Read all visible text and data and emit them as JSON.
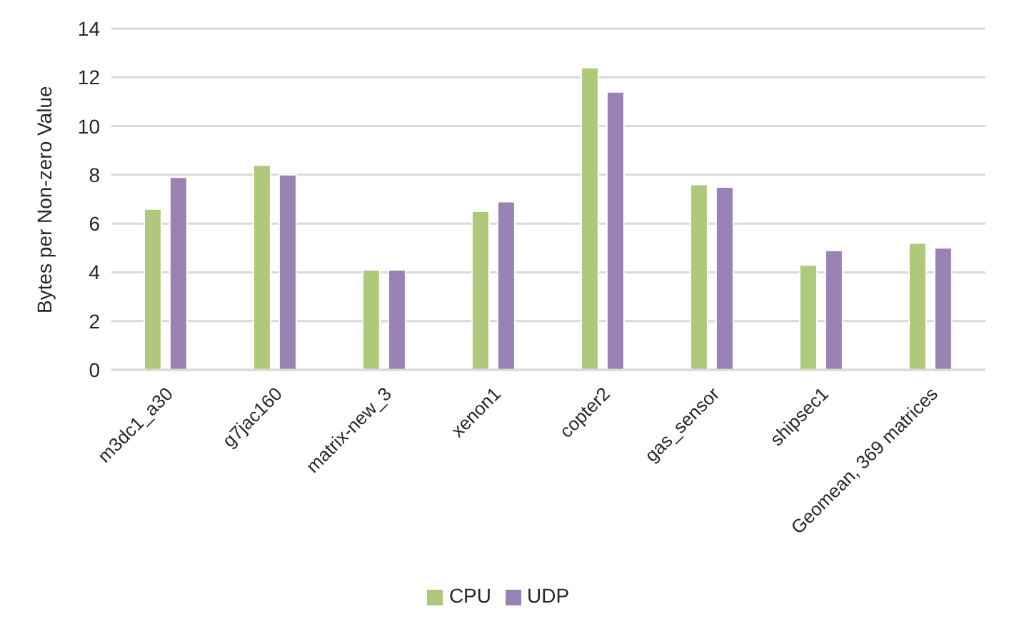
{
  "chart_data": {
    "type": "bar",
    "ylabel": "Bytes per Non-zero Value",
    "categories": [
      "m3dc1_a30",
      "g7jac160",
      "matrix-new_3",
      "xenon1",
      "copter2",
      "gas_sensor",
      "shipsec1",
      "Geomean, 369 matrices"
    ],
    "series": [
      {
        "name": "CPU",
        "color": "#afc97a",
        "values": [
          6.6,
          8.4,
          4.1,
          6.5,
          12.4,
          7.6,
          4.3,
          5.2
        ]
      },
      {
        "name": "UDP",
        "color": "#9983b5",
        "values": [
          7.9,
          8.0,
          4.1,
          6.9,
          11.4,
          7.5,
          4.9,
          5.0
        ]
      }
    ],
    "ylim": [
      0,
      14
    ],
    "yticks": [
      0,
      2,
      4,
      6,
      8,
      10,
      12,
      14
    ],
    "grid": "y",
    "legend": "bottom"
  }
}
